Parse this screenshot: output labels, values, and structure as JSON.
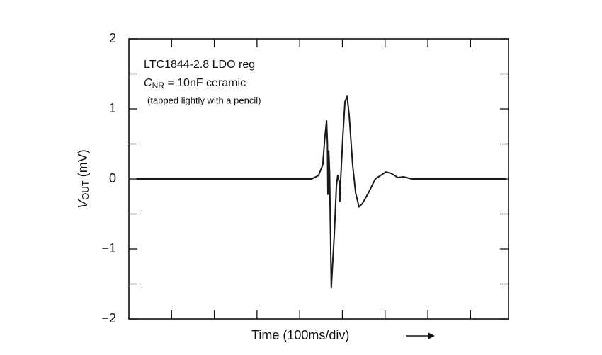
{
  "chart_data": {
    "type": "line",
    "annotations": {
      "line1": "LTC1844-2.8 LDO reg",
      "line2": {
        "main": "C",
        "sub": "NR",
        "rest": " = 10nF ceramic"
      },
      "line3": "(tapped lightly with a pencil)"
    },
    "x_label": "Time (100ms/div)",
    "y_label": {
      "main": "V",
      "sub": "OUT",
      "unit": " (mV)"
    },
    "xlim": [
      0,
      8.89
    ],
    "xticks": [
      1,
      2,
      3,
      4,
      5,
      6,
      7,
      8
    ],
    "ylim": [
      -2,
      2
    ],
    "yticks": [
      {
        "value": -2,
        "label": "−2"
      },
      {
        "value": -1,
        "label": "−1"
      },
      0,
      1,
      2
    ],
    "yminorticks": [
      -1.5,
      -0.5,
      0.5,
      1.5
    ],
    "grid": false,
    "x": [
      0.18,
      4.28,
      4.44,
      4.54,
      4.59,
      4.63,
      4.65,
      4.66,
      4.68,
      4.7,
      4.74,
      4.81,
      4.86,
      4.89,
      4.93,
      4.94,
      4.96,
      5.01,
      5.06,
      5.11,
      5.16,
      5.24,
      5.31,
      5.39,
      5.47,
      5.61,
      5.77,
      6.02,
      6.14,
      6.3,
      6.43,
      6.63,
      8.84
    ],
    "series": [
      {
        "color": "#1a1a1a",
        "values": [
          0,
          0,
          0.05,
          0.2,
          0.6,
          0.83,
          0.5,
          -0.22,
          0.4,
          0.1,
          -1.55,
          -0.8,
          -0.1,
          0.05,
          -0.05,
          -0.32,
          0,
          0.6,
          1.1,
          1.18,
          0.9,
          0.2,
          -0.2,
          -0.4,
          -0.35,
          -0.2,
          0,
          0.1,
          0.08,
          0.02,
          0.03,
          0,
          0
        ]
      }
    ]
  }
}
